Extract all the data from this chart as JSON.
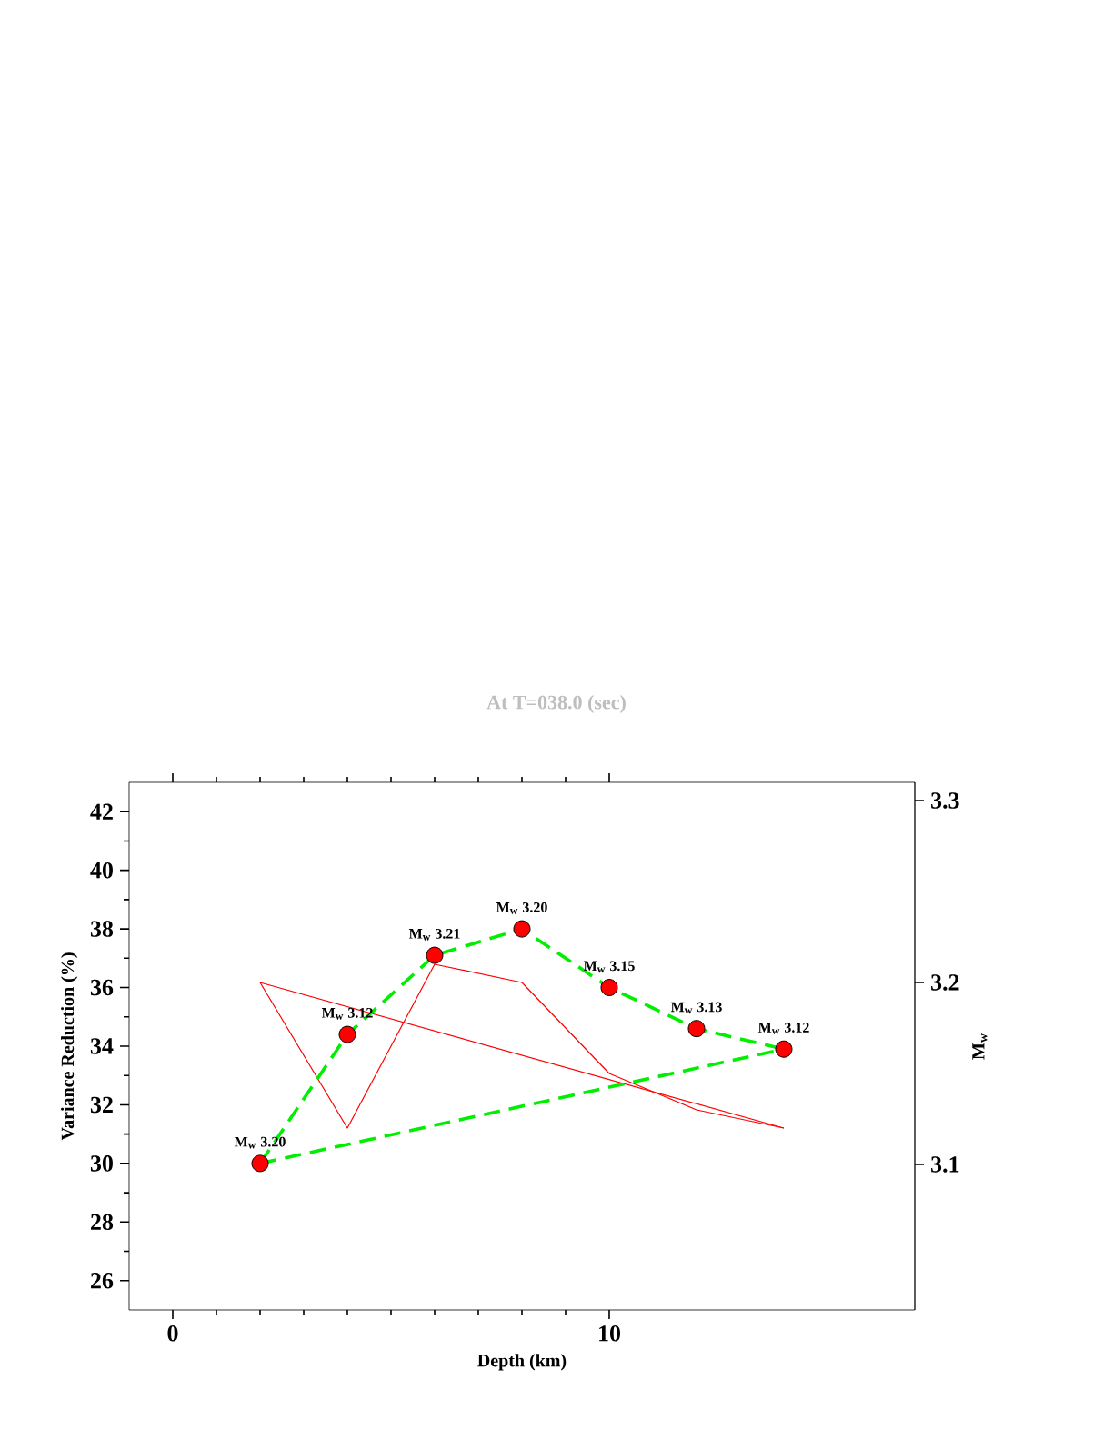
{
  "chart_data": {
    "type": "line",
    "title": "At T=038.0 (sec)",
    "xlabel": "Depth (km)",
    "ylabel": "Variance Reduction (%)",
    "y2label": "M$_{w}$",
    "xlim": [
      -1,
      17
    ],
    "xticks": [
      0,
      10
    ],
    "ylim": [
      25,
      43
    ],
    "yticks": [
      26,
      28,
      30,
      32,
      34,
      36,
      38,
      40,
      42
    ],
    "y2lim": [
      3.02,
      3.31
    ],
    "y2ticks": [
      3.1,
      3.2,
      3.3
    ],
    "grid": false,
    "series": [
      {
        "color": "#00ee00",
        "line_style": "dashed",
        "marker": "none",
        "x": [
          2,
          4,
          6,
          8,
          10,
          12,
          14
        ],
        "values": [
          30,
          34.4,
          37.1,
          38,
          36,
          34.6,
          33.9
        ]
      },
      {
        "color": "#00ee00",
        "line_style": "dashed",
        "marker": "none",
        "x": [
          2,
          14
        ],
        "values": [
          30,
          33.9
        ]
      },
      {
        "axis": "y2",
        "color": "#ff0000",
        "line_style": "solid",
        "marker": "none",
        "x": [
          2,
          4,
          6,
          8,
          10,
          12,
          14
        ],
        "values": [
          3.2,
          3.12,
          3.21,
          3.2,
          3.15,
          3.13,
          3.12
        ]
      },
      {
        "axis": "y2",
        "color": "#ff0000",
        "line_style": "solid",
        "marker": "none",
        "x": [
          2,
          14
        ],
        "values": [
          3.2,
          3.12
        ]
      },
      {
        "type": "scatter",
        "color": "#ff0000",
        "marker": "circle",
        "x": [
          2,
          4,
          6,
          8,
          10,
          12,
          14
        ],
        "values": [
          30,
          34.4,
          37.1,
          38,
          36,
          34.6,
          33.9
        ]
      }
    ],
    "annotations": [
      {
        "text": "M$_{w}$ 3.20",
        "x": 2,
        "y": 30
      },
      {
        "text": "M$_{w}$ 3.12",
        "x": 4,
        "y": 34.4
      },
      {
        "text": "M$_{w}$ 3.21",
        "x": 6,
        "y": 37.1
      },
      {
        "text": "M$_{w}$ 3.20",
        "x": 8,
        "y": 38
      },
      {
        "text": "M$_{w}$ 3.15",
        "x": 10,
        "y": 36
      },
      {
        "text": "M$_{w}$ 3.13",
        "x": 12,
        "y": 34.6
      },
      {
        "text": "M$_{w}$ 3.12",
        "x": 14,
        "y": 33.9
      }
    ]
  }
}
